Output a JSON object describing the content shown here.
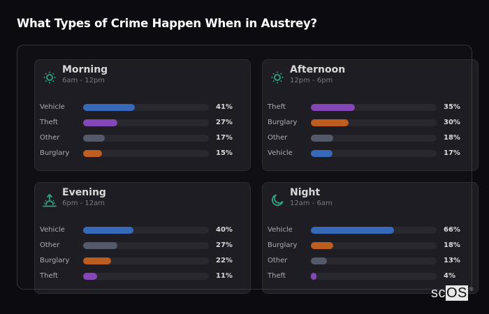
{
  "title": "What Types of Crime Happen When in Austrey?",
  "colors": {
    "Vehicle": "#3b78d8",
    "Theft": "#9a4fd6",
    "Other": "#5f6677",
    "Burglary": "#e06a1e",
    "icon": "#2ec49a"
  },
  "cards": [
    {
      "name": "Morning",
      "range": "6am - 12pm",
      "icon": "sun-icon",
      "rows": [
        {
          "label": "Vehicle",
          "value": 41,
          "pct": "41%"
        },
        {
          "label": "Theft",
          "value": 27,
          "pct": "27%"
        },
        {
          "label": "Other",
          "value": 17,
          "pct": "17%"
        },
        {
          "label": "Burglary",
          "value": 15,
          "pct": "15%"
        }
      ]
    },
    {
      "name": "Afternoon",
      "range": "12pm - 6pm",
      "icon": "sun-icon",
      "rows": [
        {
          "label": "Theft",
          "value": 35,
          "pct": "35%"
        },
        {
          "label": "Burglary",
          "value": 30,
          "pct": "30%"
        },
        {
          "label": "Other",
          "value": 18,
          "pct": "18%"
        },
        {
          "label": "Vehicle",
          "value": 17,
          "pct": "17%"
        }
      ]
    },
    {
      "name": "Evening",
      "range": "6pm - 12am",
      "icon": "sunset-icon",
      "rows": [
        {
          "label": "Vehicle",
          "value": 40,
          "pct": "40%"
        },
        {
          "label": "Other",
          "value": 27,
          "pct": "27%"
        },
        {
          "label": "Burglary",
          "value": 22,
          "pct": "22%"
        },
        {
          "label": "Theft",
          "value": 11,
          "pct": "11%"
        }
      ]
    },
    {
      "name": "Night",
      "range": "12am - 6am",
      "icon": "moon-icon",
      "rows": [
        {
          "label": "Vehicle",
          "value": 66,
          "pct": "66%"
        },
        {
          "label": "Burglary",
          "value": 18,
          "pct": "18%"
        },
        {
          "label": "Other",
          "value": 13,
          "pct": "13%"
        },
        {
          "label": "Theft",
          "value": 4,
          "pct": "4%"
        }
      ]
    }
  ],
  "logo": {
    "sc": "sc",
    "os": "OS",
    "reg": "®"
  },
  "chart_data": [
    {
      "type": "bar",
      "title": "Morning",
      "subtitle": "6am - 12pm",
      "categories": [
        "Vehicle",
        "Theft",
        "Other",
        "Burglary"
      ],
      "values": [
        41,
        27,
        17,
        15
      ],
      "xlabel": "",
      "ylabel": "",
      "xlim": [
        0,
        100
      ],
      "orientation": "horizontal"
    },
    {
      "type": "bar",
      "title": "Afternoon",
      "subtitle": "12pm - 6pm",
      "categories": [
        "Theft",
        "Burglary",
        "Other",
        "Vehicle"
      ],
      "values": [
        35,
        30,
        18,
        17
      ],
      "xlabel": "",
      "ylabel": "",
      "xlim": [
        0,
        100
      ],
      "orientation": "horizontal"
    },
    {
      "type": "bar",
      "title": "Evening",
      "subtitle": "6pm - 12am",
      "categories": [
        "Vehicle",
        "Other",
        "Burglary",
        "Theft"
      ],
      "values": [
        40,
        27,
        22,
        11
      ],
      "xlabel": "",
      "ylabel": "",
      "xlim": [
        0,
        100
      ],
      "orientation": "horizontal"
    },
    {
      "type": "bar",
      "title": "Night",
      "subtitle": "12am - 6am",
      "categories": [
        "Vehicle",
        "Burglary",
        "Other",
        "Theft"
      ],
      "values": [
        66,
        18,
        13,
        4
      ],
      "xlabel": "",
      "ylabel": "",
      "xlim": [
        0,
        100
      ],
      "orientation": "horizontal"
    }
  ]
}
